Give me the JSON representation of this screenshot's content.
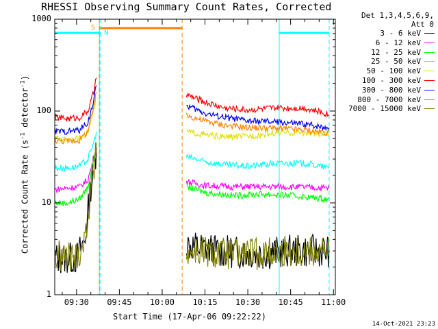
{
  "chart_data": {
    "type": "line",
    "title": "RHESSI Observing Summary Count Rates, Corrected",
    "xlabel": "Start Time (17-Apr-06 09:22:22)",
    "ylabel": "Corrected Count Rate (s",
    "ylabel_sup1": "-1",
    "ylabel_mid": " detector",
    "ylabel_sup2": "-1",
    "ylabel_end": ")",
    "yscale": "log",
    "ylim": [
      1,
      1000
    ],
    "xlim": [
      "09:22:22",
      "11:00:40"
    ],
    "yticks": [
      "1",
      "10",
      "100",
      "1000"
    ],
    "xticks": [
      "09:30",
      "09:45",
      "10:00",
      "10:15",
      "10:30",
      "10:45",
      "11:00"
    ],
    "legend_header": [
      "Det 1,3,4,5,6,9,",
      "Att 0"
    ],
    "legend_placement": "right",
    "footer": "14-Oct-2021 23:23",
    "markers": {
      "s_label": "S",
      "n_label": "N",
      "saa_color": "#ff8000",
      "night_color": "#00ffff",
      "saa_interval": [
        "09:38:00",
        "10:07:00"
      ],
      "night_intervals": [
        [
          "09:22:22",
          "09:38:30"
        ],
        [
          "10:41:00",
          "10:58:30"
        ]
      ],
      "vlines": [
        {
          "t": "09:22:22",
          "color": "#00ffff",
          "dash": false
        },
        {
          "t": "09:38:00",
          "color": "#00ffff",
          "dash": false
        },
        {
          "t": "09:38:30",
          "color": "#00ffff",
          "dash": true
        },
        {
          "t": "09:38:00",
          "color": "#ff8000",
          "dash": true
        },
        {
          "t": "10:07:00",
          "color": "#ff8000",
          "dash": true
        },
        {
          "t": "10:41:00",
          "color": "#00ffff",
          "dash": false
        },
        {
          "t": "10:58:30",
          "color": "#00ffff",
          "dash": true
        }
      ]
    },
    "series": [
      {
        "name": "3 - 6 keV",
        "color": "#000000",
        "seg1": [
          [
            "09:22:30",
            2.5
          ],
          [
            "09:27:00",
            2.5
          ],
          [
            "09:30:00",
            2.5
          ],
          [
            "09:33:00",
            4
          ],
          [
            "09:35:00",
            15
          ],
          [
            "09:37:00",
            40
          ]
        ],
        "seg2": [
          [
            "10:08:30",
            3.5
          ],
          [
            "10:20:00",
            3.0
          ],
          [
            "10:35:00",
            2.8
          ],
          [
            "10:45:00",
            3.0
          ],
          [
            "10:58:30",
            3.0
          ]
        ]
      },
      {
        "name": "6 - 12 keV",
        "color": "#ff00ff",
        "seg1": [
          [
            "09:22:30",
            14
          ],
          [
            "09:27:00",
            14.5
          ],
          [
            "09:31:00",
            15
          ],
          [
            "09:34:00",
            18
          ],
          [
            "09:36:00",
            30
          ],
          [
            "09:37:00",
            40
          ]
        ],
        "seg2": [
          [
            "10:08:30",
            17
          ],
          [
            "10:15:00",
            15.5
          ],
          [
            "10:25:00",
            15
          ],
          [
            "10:35:00",
            15
          ],
          [
            "10:45:00",
            15
          ],
          [
            "10:58:30",
            14.5
          ]
        ]
      },
      {
        "name": "12 - 25 keV",
        "color": "#00ff00",
        "seg1": [
          [
            "09:22:30",
            10
          ],
          [
            "09:27:00",
            10
          ],
          [
            "09:31:00",
            11
          ],
          [
            "09:34:00",
            15
          ],
          [
            "09:36:00",
            30
          ],
          [
            "09:37:00",
            45
          ]
        ],
        "seg2": [
          [
            "10:08:30",
            15
          ],
          [
            "10:15:00",
            13
          ],
          [
            "10:25:00",
            12
          ],
          [
            "10:35:00",
            12.5
          ],
          [
            "10:45:00",
            12
          ],
          [
            "10:58:30",
            11
          ]
        ]
      },
      {
        "name": "25 - 50 keV",
        "color": "#00ffff",
        "seg1": [
          [
            "09:22:30",
            24
          ],
          [
            "09:27:00",
            24
          ],
          [
            "09:31:00",
            25
          ],
          [
            "09:34:00",
            30
          ],
          [
            "09:36:00",
            45
          ],
          [
            "09:37:00",
            60
          ]
        ],
        "seg2": [
          [
            "10:08:30",
            32
          ],
          [
            "10:15:00",
            28
          ],
          [
            "10:22:00",
            26
          ],
          [
            "10:30:00",
            25
          ],
          [
            "10:40:00",
            27
          ],
          [
            "10:50:00",
            27
          ],
          [
            "10:58:30",
            24
          ]
        ]
      },
      {
        "name": "50 - 100 keV",
        "color": "#e0e000",
        "seg1": [
          [
            "09:22:30",
            50
          ],
          [
            "09:27:00",
            49
          ],
          [
            "09:31:00",
            50
          ],
          [
            "09:34:00",
            60
          ],
          [
            "09:36:00",
            100
          ],
          [
            "09:37:00",
            140
          ]
        ],
        "seg2": [
          [
            "10:08:30",
            60
          ],
          [
            "10:15:00",
            55
          ],
          [
            "10:22:00",
            52
          ],
          [
            "10:30:00",
            53
          ],
          [
            "10:40:00",
            58
          ],
          [
            "10:50:00",
            58
          ],
          [
            "10:58:30",
            55
          ]
        ]
      },
      {
        "name": "100 - 300 keV",
        "color": "#ff0000",
        "seg1": [
          [
            "09:22:30",
            85
          ],
          [
            "09:27:00",
            83
          ],
          [
            "09:31:00",
            85
          ],
          [
            "09:34:00",
            100
          ],
          [
            "09:36:00",
            160
          ],
          [
            "09:37:00",
            230
          ]
        ],
        "seg2": [
          [
            "10:08:30",
            150
          ],
          [
            "10:15:00",
            125
          ],
          [
            "10:22:00",
            108
          ],
          [
            "10:30:00",
            103
          ],
          [
            "10:40:00",
            108
          ],
          [
            "10:50:00",
            108
          ],
          [
            "10:58:30",
            92
          ]
        ]
      },
      {
        "name": "300 - 800 keV",
        "color": "#0000ff",
        "seg1": [
          [
            "09:22:30",
            60
          ],
          [
            "09:27:00",
            60
          ],
          [
            "09:31:00",
            62
          ],
          [
            "09:34:00",
            75
          ],
          [
            "09:36:00",
            130
          ],
          [
            "09:37:00",
            190
          ]
        ],
        "seg2": [
          [
            "10:08:30",
            115
          ],
          [
            "10:15:00",
            95
          ],
          [
            "10:22:00",
            85
          ],
          [
            "10:30:00",
            78
          ],
          [
            "10:40:00",
            76
          ],
          [
            "10:50:00",
            72
          ],
          [
            "10:58:30",
            66
          ]
        ]
      },
      {
        "name": "800 - 7000 keV",
        "color": "#ff8000",
        "seg1": [
          [
            "09:22:30",
            48
          ],
          [
            "09:27:00",
            47
          ],
          [
            "09:31:00",
            48
          ],
          [
            "09:34:00",
            60
          ],
          [
            "09:36:00",
            110
          ],
          [
            "09:37:00",
            160
          ]
        ],
        "seg2": [
          [
            "10:08:30",
            90
          ],
          [
            "10:15:00",
            78
          ],
          [
            "10:22:00",
            70
          ],
          [
            "10:30:00",
            66
          ],
          [
            "10:40:00",
            65
          ],
          [
            "10:50:00",
            62
          ],
          [
            "10:58:30",
            58
          ]
        ]
      },
      {
        "name": "7000 - 15000 keV",
        "color": "#808000",
        "seg1": [
          [
            "09:22:30",
            2.6
          ],
          [
            "09:27:00",
            2.6
          ],
          [
            "09:30:00",
            2.6
          ],
          [
            "09:33:00",
            4
          ],
          [
            "09:35:00",
            14
          ],
          [
            "09:37:00",
            35
          ]
        ],
        "seg2": [
          [
            "10:08:30",
            3.0
          ],
          [
            "10:20:00",
            2.8
          ],
          [
            "10:35:00",
            2.8
          ],
          [
            "10:45:00",
            3.0
          ],
          [
            "10:58:30",
            3.0
          ]
        ]
      }
    ]
  }
}
